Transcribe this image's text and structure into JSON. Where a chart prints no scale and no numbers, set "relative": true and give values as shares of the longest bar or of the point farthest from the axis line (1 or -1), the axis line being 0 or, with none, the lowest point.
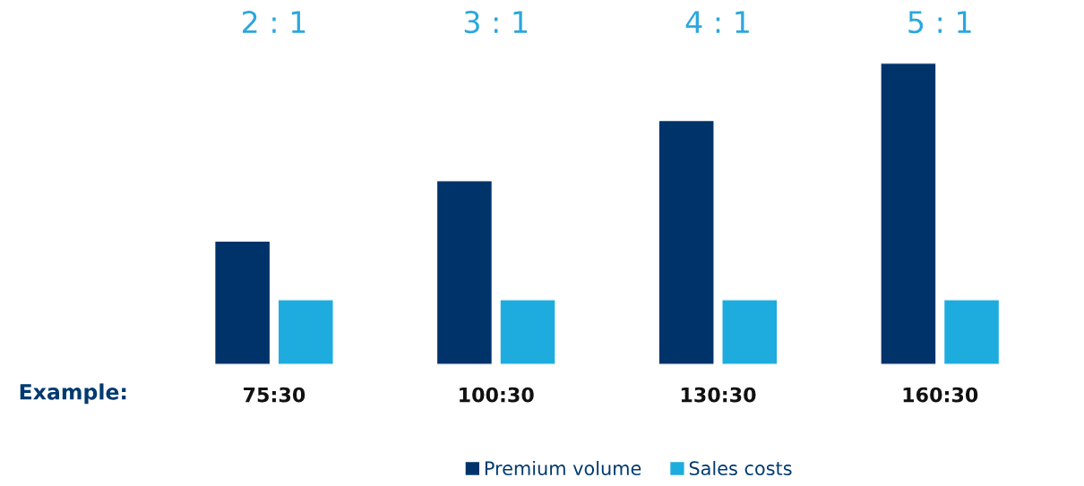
{
  "chart_data": {
    "type": "bar",
    "relative": true,
    "categories": [
      "75:30",
      "100:30",
      "130:30",
      "160:30"
    ],
    "series": [
      {
        "name": "Premium volume",
        "color": "#00336a",
        "values": [
          0.41,
          0.61,
          0.81,
          1.0
        ]
      },
      {
        "name": "Sales costs",
        "color": "#1eacdf",
        "values": [
          0.215,
          0.215,
          0.215,
          0.215
        ]
      }
    ],
    "annotations": [
      "2 : 1",
      "3 : 1",
      "4 : 1",
      "5 : 1",
      "Example:"
    ],
    "legend": "bottom",
    "grid": false
  }
}
